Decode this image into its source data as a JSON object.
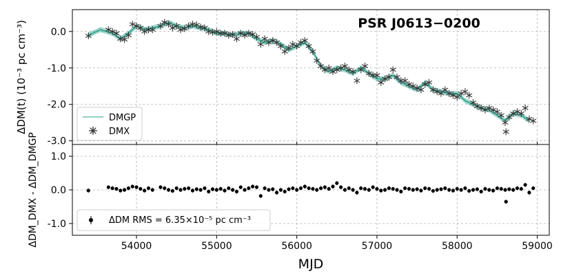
{
  "chart_data": [
    {
      "type": "line",
      "panel": "top",
      "title": "PSR J0613−0200",
      "xlabel": "",
      "ylabel": "ΔDM(t) (10⁻³ pc cm⁻³)",
      "xlim": [
        53200,
        59150
      ],
      "ylim": [
        -3.1,
        0.6
      ],
      "xticks": [
        54000,
        55000,
        56000,
        57000,
        58000,
        59000
      ],
      "yticks": [
        0.0,
        -1.0,
        -2.0,
        -3.0
      ],
      "ytick_labels": [
        "0.0",
        "-1.0",
        "-2.0",
        "-3.0"
      ],
      "grid": true,
      "legend_position": "bottom-left",
      "colors": {
        "dmgp": "#2ca58d",
        "dmx": "#333333"
      },
      "series": [
        {
          "name": "DMGP",
          "style": "band",
          "x": [
            53400,
            53550,
            53700,
            53800,
            53900,
            54000,
            54100,
            54200,
            54300,
            54400,
            54500,
            54600,
            54700,
            54800,
            54900,
            55000,
            55100,
            55200,
            55300,
            55400,
            55500,
            55600,
            55700,
            55800,
            55900,
            56000,
            56100,
            56200,
            56300,
            56400,
            56500,
            56600,
            56700,
            56800,
            56900,
            57000,
            57100,
            57200,
            57300,
            57400,
            57500,
            57600,
            57700,
            57800,
            57900,
            58000,
            58100,
            58200,
            58300,
            58400,
            58500,
            58600,
            58700,
            58800,
            58900
          ],
          "y": [
            -0.1,
            0.05,
            -0.05,
            -0.2,
            -0.05,
            0.15,
            0.05,
            0.1,
            0.15,
            0.25,
            0.15,
            0.1,
            0.15,
            0.1,
            0.05,
            -0.05,
            -0.05,
            -0.1,
            -0.05,
            -0.05,
            -0.2,
            -0.3,
            -0.25,
            -0.35,
            -0.5,
            -0.4,
            -0.3,
            -0.55,
            -0.95,
            -1.1,
            -1.0,
            -1.05,
            -1.15,
            -1.0,
            -1.15,
            -1.3,
            -1.3,
            -1.2,
            -1.4,
            -1.5,
            -1.6,
            -1.4,
            -1.6,
            -1.65,
            -1.7,
            -1.7,
            -1.9,
            -2.0,
            -2.1,
            -2.15,
            -2.3,
            -2.45,
            -2.25,
            -2.3,
            -2.45
          ]
        },
        {
          "name": "DMX",
          "style": "asterisk-markers",
          "x": [
            53400,
            53650,
            53700,
            53750,
            53800,
            53850,
            53900,
            53950,
            54000,
            54050,
            54100,
            54150,
            54200,
            54300,
            54350,
            54400,
            54450,
            54500,
            54550,
            54600,
            54650,
            54700,
            54750,
            54800,
            54850,
            54900,
            54950,
            55000,
            55050,
            55100,
            55150,
            55200,
            55250,
            55300,
            55350,
            55400,
            55450,
            55500,
            55550,
            55600,
            55650,
            55700,
            55750,
            55800,
            55850,
            55900,
            55950,
            56000,
            56050,
            56100,
            56150,
            56200,
            56250,
            56300,
            56350,
            56400,
            56450,
            56500,
            56550,
            56600,
            56650,
            56700,
            56750,
            56800,
            56850,
            56900,
            56950,
            57000,
            57050,
            57100,
            57150,
            57200,
            57250,
            57300,
            57350,
            57400,
            57450,
            57500,
            57550,
            57600,
            57650,
            57700,
            57750,
            57800,
            57850,
            57900,
            57950,
            58000,
            58050,
            58100,
            58150,
            58200,
            58250,
            58300,
            58350,
            58400,
            58450,
            58500,
            58550,
            58600,
            58610,
            58650,
            58700,
            58750,
            58800,
            58850,
            58900,
            58950
          ],
          "y": [
            -0.12,
            0.05,
            0.0,
            -0.05,
            -0.2,
            -0.22,
            -0.1,
            0.2,
            0.15,
            0.1,
            0.0,
            0.05,
            0.05,
            0.15,
            0.25,
            0.2,
            0.1,
            0.15,
            0.05,
            0.08,
            0.15,
            0.2,
            0.18,
            0.12,
            0.1,
            0.0,
            -0.02,
            0.0,
            -0.05,
            -0.05,
            -0.1,
            -0.08,
            -0.2,
            -0.05,
            -0.1,
            -0.05,
            -0.08,
            -0.15,
            -0.35,
            -0.2,
            -0.3,
            -0.25,
            -0.3,
            -0.4,
            -0.55,
            -0.45,
            -0.35,
            -0.4,
            -0.3,
            -0.25,
            -0.4,
            -0.55,
            -0.8,
            -0.95,
            -1.05,
            -1.0,
            -1.1,
            -1.05,
            -1.0,
            -0.95,
            -1.05,
            -1.1,
            -1.35,
            -1.05,
            -0.95,
            -1.15,
            -1.2,
            -1.2,
            -1.4,
            -1.3,
            -1.25,
            -1.05,
            -1.25,
            -1.35,
            -1.35,
            -1.45,
            -1.5,
            -1.55,
            -1.6,
            -1.45,
            -1.4,
            -1.6,
            -1.65,
            -1.7,
            -1.6,
            -1.7,
            -1.75,
            -1.8,
            -1.7,
            -1.65,
            -1.75,
            -1.95,
            -2.05,
            -2.1,
            -2.15,
            -2.1,
            -2.15,
            -2.2,
            -2.3,
            -2.5,
            -2.75,
            -2.35,
            -2.25,
            -2.2,
            -2.25,
            -2.1,
            -2.4,
            -2.45
          ]
        }
      ]
    },
    {
      "type": "scatter",
      "panel": "bottom",
      "title": "",
      "xlabel": "MJD",
      "ylabel": "ΔDM_DMX - ΔDM_DMGP",
      "xlim": [
        53200,
        59150
      ],
      "ylim": [
        -1.35,
        1.35
      ],
      "xticks": [
        54000,
        55000,
        56000,
        57000,
        58000,
        59000
      ],
      "xtick_labels": [
        "54000",
        "55000",
        "56000",
        "57000",
        "58000",
        "59000"
      ],
      "yticks": [
        1.0,
        0.0,
        -1.0
      ],
      "ytick_labels": [
        "1.0",
        "0.0",
        "-1.0"
      ],
      "grid": true,
      "legend_position": "bottom-left",
      "colors": {
        "points": "#000000"
      },
      "series": [
        {
          "name": "ΔDM RMS = 6.35×10⁻⁵ pc cm⁻³",
          "style": "errorbar-points",
          "x": [
            53400,
            53650,
            53700,
            53750,
            53800,
            53850,
            53900,
            53950,
            54000,
            54050,
            54100,
            54150,
            54200,
            54300,
            54350,
            54400,
            54450,
            54500,
            54550,
            54600,
            54650,
            54700,
            54750,
            54800,
            54850,
            54900,
            54950,
            55000,
            55050,
            55100,
            55150,
            55200,
            55250,
            55300,
            55350,
            55400,
            55450,
            55500,
            55550,
            55600,
            55650,
            55700,
            55750,
            55800,
            55850,
            55900,
            55950,
            56000,
            56050,
            56100,
            56150,
            56200,
            56250,
            56300,
            56350,
            56400,
            56450,
            56500,
            56550,
            56600,
            56650,
            56700,
            56750,
            56800,
            56850,
            56900,
            56950,
            57000,
            57050,
            57100,
            57150,
            57200,
            57250,
            57300,
            57350,
            57400,
            57450,
            57500,
            57550,
            57600,
            57650,
            57700,
            57750,
            57800,
            57850,
            57900,
            57950,
            58000,
            58050,
            58100,
            58150,
            58200,
            58250,
            58300,
            58350,
            58400,
            58450,
            58500,
            58550,
            58600,
            58610,
            58650,
            58700,
            58750,
            58800,
            58850,
            58900,
            58950
          ],
          "y": [
            -0.02,
            0.08,
            0.05,
            0.03,
            -0.02,
            0.0,
            0.05,
            0.1,
            0.08,
            0.03,
            -0.02,
            0.05,
            0.0,
            0.08,
            0.05,
            0.0,
            -0.03,
            0.05,
            0.0,
            0.03,
            0.05,
            -0.02,
            0.02,
            0.0,
            0.05,
            -0.05,
            0.02,
            0.0,
            0.03,
            -0.02,
            0.05,
            0.0,
            -0.05,
            0.08,
            0.0,
            0.05,
            0.1,
            0.08,
            -0.18,
            0.05,
            0.0,
            0.02,
            -0.08,
            0.0,
            -0.05,
            0.02,
            0.05,
            0.0,
            0.05,
            0.1,
            0.05,
            0.03,
            0.0,
            0.05,
            0.08,
            0.03,
            0.1,
            0.2,
            0.08,
            0.0,
            0.05,
            0.0,
            -0.08,
            0.05,
            0.03,
            0.0,
            0.08,
            0.03,
            -0.02,
            0.0,
            0.05,
            0.03,
            0.0,
            -0.05,
            0.05,
            0.03,
            0.0,
            0.02,
            -0.02,
            0.05,
            0.03,
            -0.03,
            0.0,
            0.02,
            0.05,
            0.0,
            -0.02,
            0.03,
            0.0,
            0.05,
            -0.03,
            0.0,
            0.02,
            -0.05,
            0.03,
            0.0,
            -0.02,
            0.05,
            0.03,
            0.0,
            -0.35,
            0.02,
            0.0,
            0.05,
            0.03,
            0.15,
            -0.08,
            0.05
          ]
        }
      ]
    }
  ]
}
